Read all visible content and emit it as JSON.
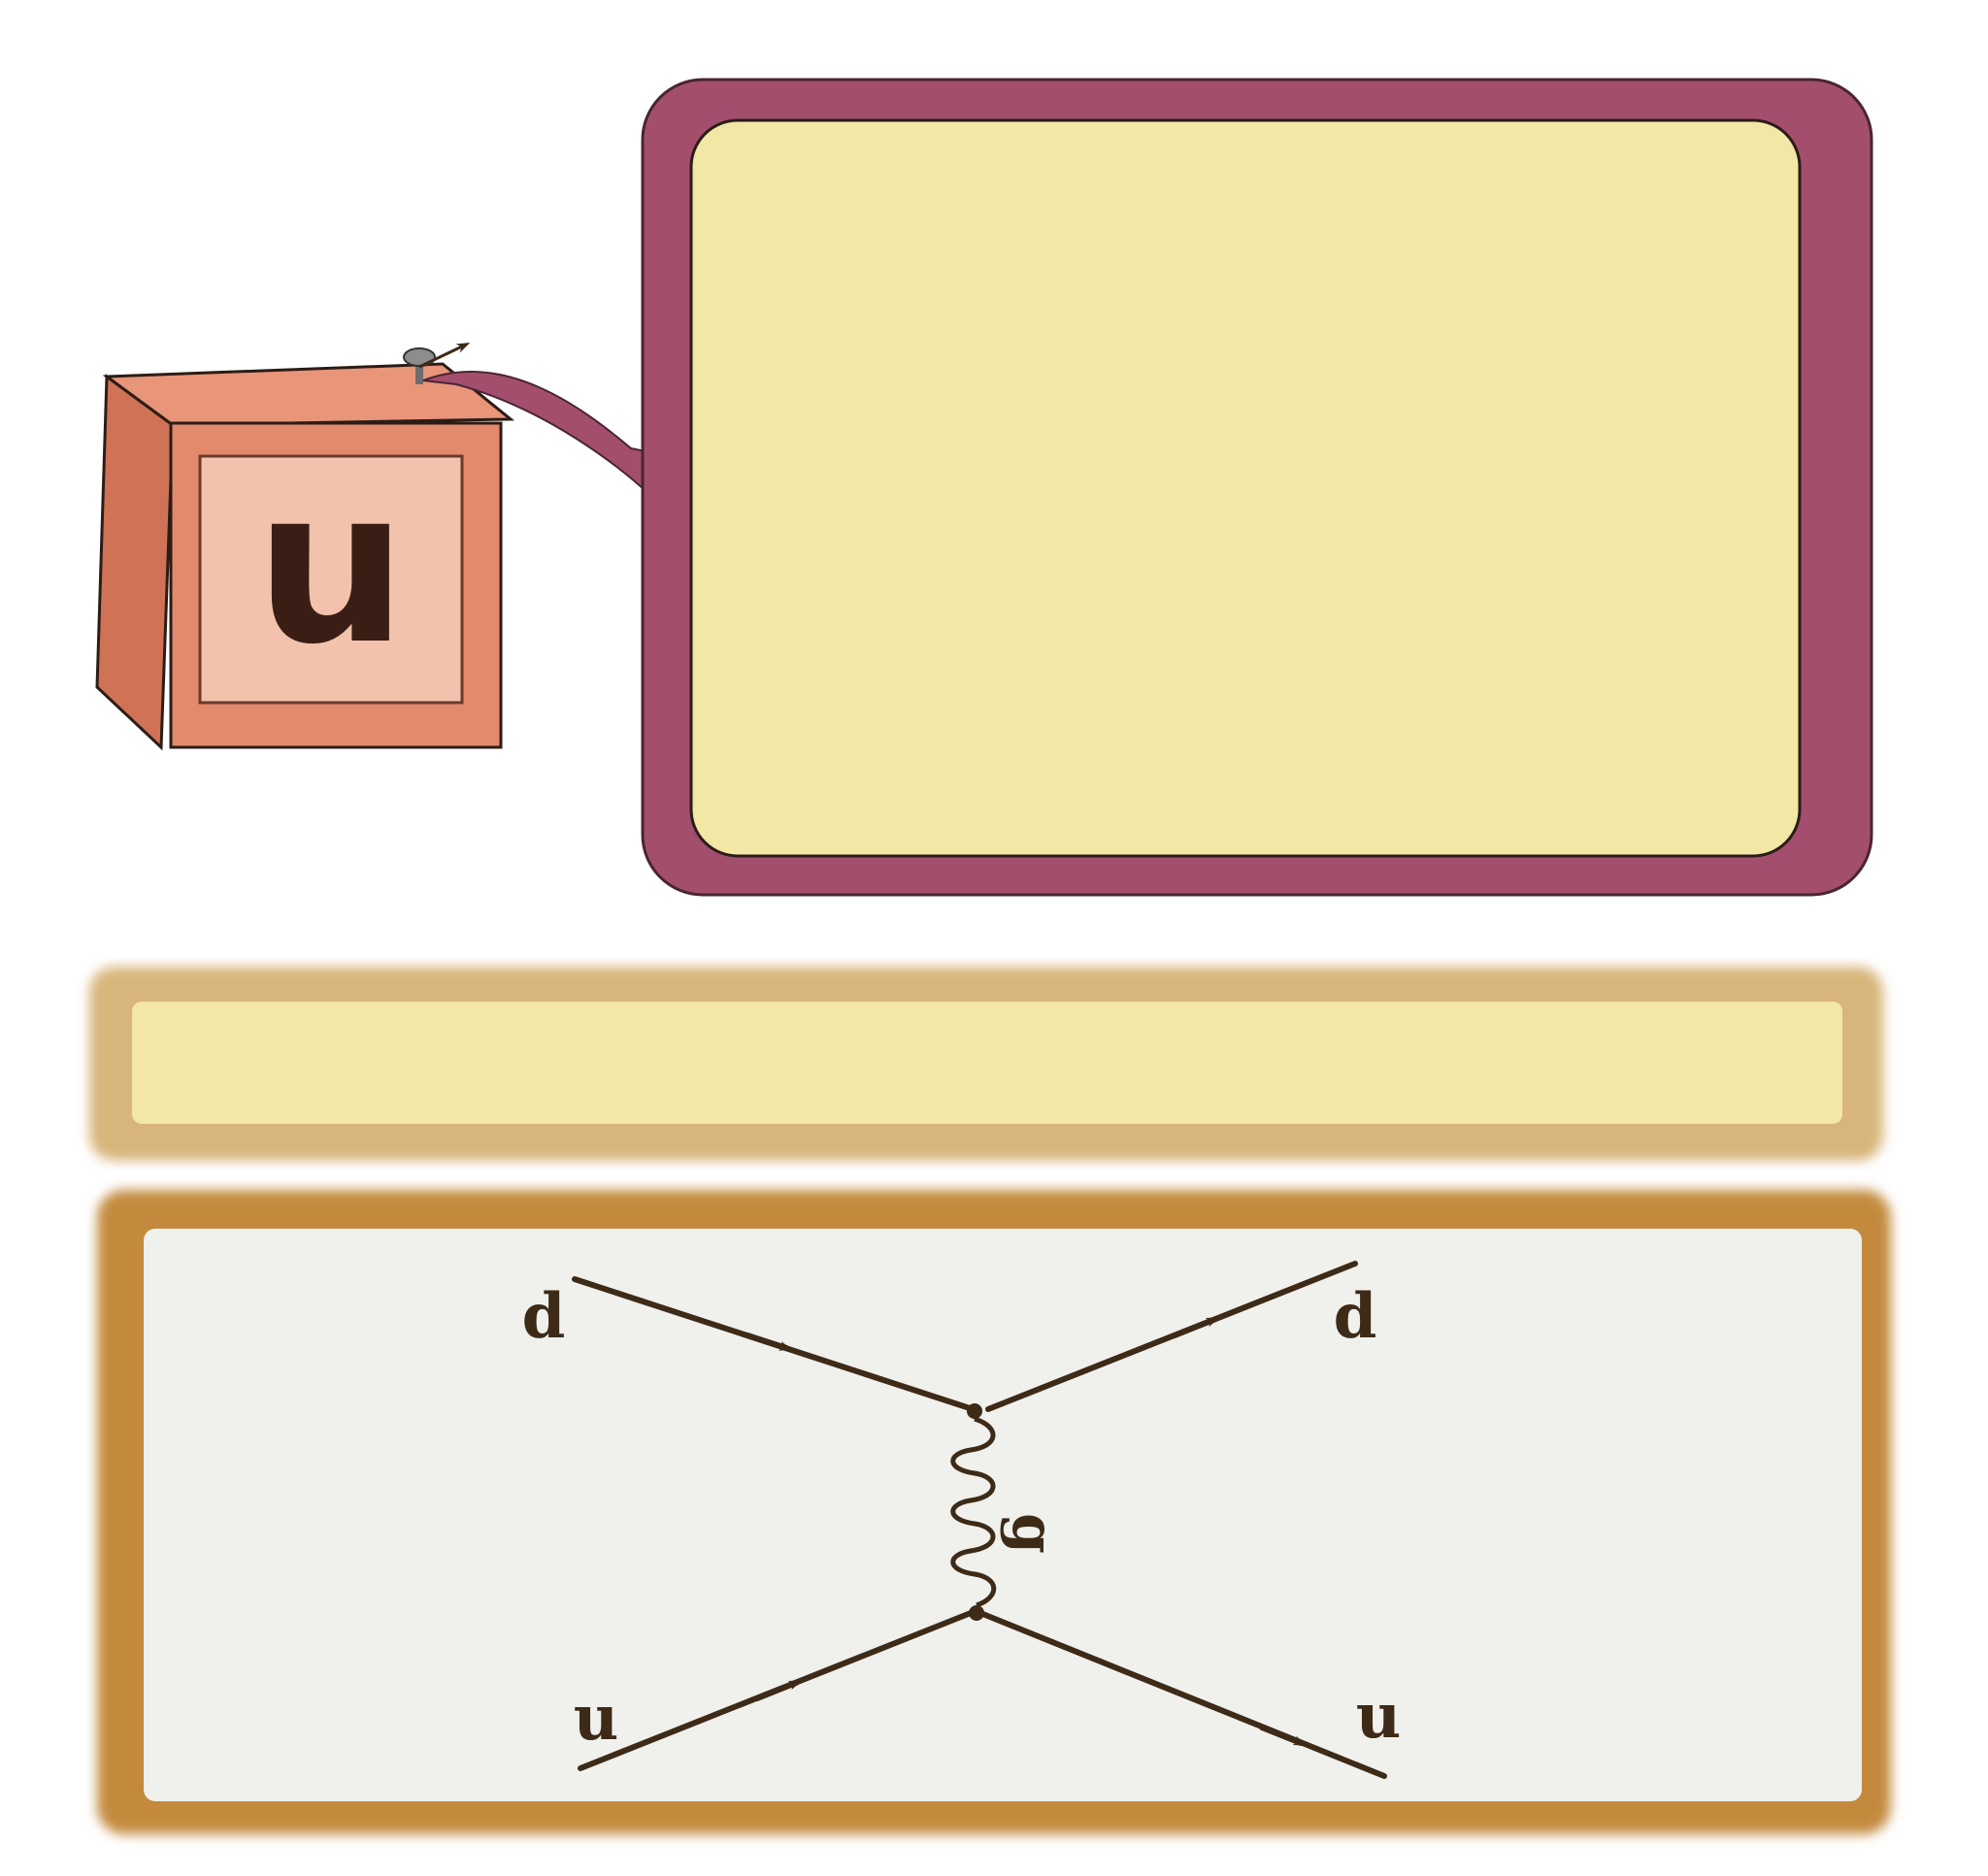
{
  "illustration": {
    "cube": {
      "letter": "u"
    },
    "speech_bubble": {
      "text": ""
    },
    "caption_bar": {
      "text": ""
    }
  },
  "feynman_diagram": {
    "labels": {
      "top_left": "d",
      "top_right": "d",
      "bottom_left": "u",
      "bottom_right": "u",
      "gluon": "g"
    }
  },
  "colors": {
    "cube_face": "#e38a6d",
    "cube_inner": "#f2c2ac",
    "bubble_frame": "#a44e6e",
    "bubble_fill": "#f2e7a5",
    "bar_frame": "#d8b57a",
    "bar_fill": "#f2e7a5",
    "panel_frame": "#c38a3e",
    "panel_fill": "#f0f0ec",
    "ink": "#3d2a17"
  }
}
